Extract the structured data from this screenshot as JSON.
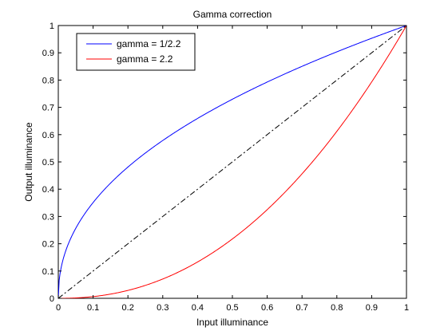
{
  "chart_data": {
    "type": "line",
    "title": "Gamma correction",
    "xlabel": "Input illuminance",
    "ylabel": "Output illuminance",
    "xlim": [
      0,
      1
    ],
    "ylim": [
      0,
      1
    ],
    "xticks": [
      0,
      0.1,
      0.2,
      0.3,
      0.4,
      0.5,
      0.6,
      0.7,
      0.8,
      0.9,
      1
    ],
    "yticks": [
      0,
      0.1,
      0.2,
      0.3,
      0.4,
      0.5,
      0.6,
      0.7,
      0.8,
      0.9,
      1
    ],
    "xtick_labels": [
      "0",
      "0.1",
      "0.2",
      "0.3",
      "0.4",
      "0.5",
      "0.6",
      "0.7",
      "0.8",
      "0.9",
      "1"
    ],
    "ytick_labels": [
      "0",
      "0.1",
      "0.2",
      "0.3",
      "0.4",
      "0.5",
      "0.6",
      "0.7",
      "0.8",
      "0.9",
      "1"
    ],
    "grid": false,
    "legend_position": "top-left",
    "x": [
      0,
      0.01,
      0.02,
      0.05,
      0.1,
      0.15,
      0.2,
      0.3,
      0.4,
      0.5,
      0.6,
      0.7,
      0.8,
      0.9,
      1
    ],
    "series": [
      {
        "name": "gamma = 1/2.2",
        "color": "#0000ff",
        "style": "solid",
        "values": [
          0,
          0.123,
          0.169,
          0.256,
          0.351,
          0.422,
          0.481,
          0.578,
          0.659,
          0.73,
          0.793,
          0.85,
          0.904,
          0.953,
          1
        ]
      },
      {
        "name": "gamma = 2.2",
        "color": "#ff0000",
        "style": "solid",
        "values": [
          0,
          4e-05,
          0.0002,
          0.0014,
          0.0063,
          0.0154,
          0.029,
          0.071,
          0.133,
          0.218,
          0.325,
          0.456,
          0.612,
          0.793,
          1
        ]
      },
      {
        "name": "",
        "color": "#000000",
        "style": "dashdot",
        "values": [
          0,
          0.01,
          0.02,
          0.05,
          0.1,
          0.15,
          0.2,
          0.3,
          0.4,
          0.5,
          0.6,
          0.7,
          0.8,
          0.9,
          1
        ]
      }
    ]
  }
}
